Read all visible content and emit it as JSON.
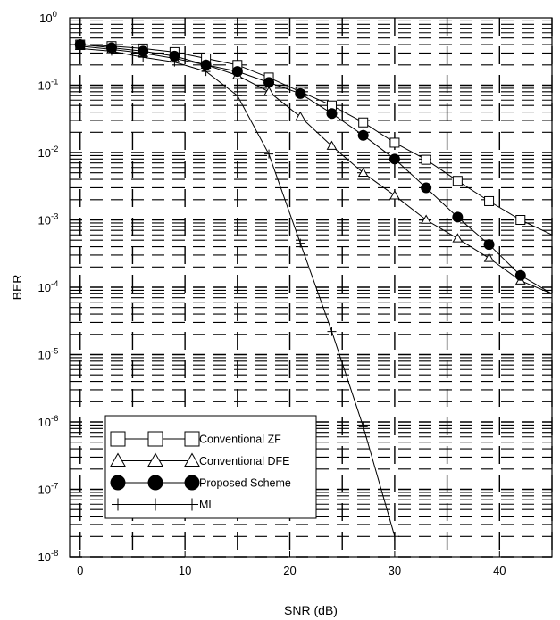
{
  "chart_data": {
    "type": "line",
    "title": "",
    "xlabel": "SNR (dB)",
    "ylabel": "BER",
    "yscale": "log",
    "xlim": [
      -1,
      45
    ],
    "ylim": [
      1e-08,
      1
    ],
    "xticks": [
      0,
      10,
      20,
      30,
      40
    ],
    "xtick_labels": [
      "0",
      "10",
      "20",
      "30",
      "40"
    ],
    "yticks": [
      {
        "value": 1,
        "base": "10",
        "exp": "0"
      },
      {
        "value": 0.1,
        "base": "10",
        "exp": "-1"
      },
      {
        "value": 0.01,
        "base": "10",
        "exp": "-2"
      },
      {
        "value": 0.001,
        "base": "10",
        "exp": "-3"
      },
      {
        "value": 0.0001,
        "base": "10",
        "exp": "-4"
      },
      {
        "value": 1e-05,
        "base": "10",
        "exp": "-5"
      },
      {
        "value": 1e-06,
        "base": "10",
        "exp": "-6"
      },
      {
        "value": 1e-07,
        "base": "10",
        "exp": "-7"
      },
      {
        "value": 1e-08,
        "base": "10",
        "exp": "-8"
      }
    ],
    "grid": true,
    "legend_position": "bottom-left",
    "series": [
      {
        "name": "Conventional ZF",
        "marker": "square",
        "x": [
          0,
          3,
          6,
          9,
          12,
          15,
          18,
          21,
          24,
          27,
          30,
          33,
          36,
          39,
          42,
          45
        ],
        "y": [
          0.4,
          0.38,
          0.35,
          0.31,
          0.25,
          0.2,
          0.13,
          0.08,
          0.05,
          0.028,
          0.014,
          0.0078,
          0.0038,
          0.0019,
          0.001,
          0.0006
        ]
      },
      {
        "name": "Conventional DFE",
        "marker": "triangle",
        "x": [
          0,
          3,
          6,
          9,
          12,
          15,
          18,
          21,
          24,
          27,
          30,
          33,
          36,
          39,
          42,
          45
        ],
        "y": [
          0.38,
          0.34,
          0.3,
          0.25,
          0.2,
          0.14,
          0.08,
          0.034,
          0.0125,
          0.005,
          0.0023,
          0.001,
          0.00053,
          0.00027,
          0.000125,
          8e-05
        ]
      },
      {
        "name": "Proposed Scheme",
        "marker": "circle",
        "x": [
          0,
          3,
          6,
          9,
          12,
          15,
          18,
          21,
          24,
          27,
          30,
          33,
          36,
          39,
          42,
          45
        ],
        "y": [
          0.4,
          0.36,
          0.32,
          0.27,
          0.2,
          0.16,
          0.11,
          0.075,
          0.038,
          0.018,
          0.008,
          0.003,
          0.0011,
          0.00043,
          0.00015,
          8e-05
        ]
      },
      {
        "name": "ML",
        "marker": "plus",
        "x": [
          0,
          3,
          6,
          9,
          12,
          15,
          18,
          21,
          24,
          27,
          30
        ],
        "y": [
          0.35,
          0.32,
          0.26,
          0.22,
          0.16,
          0.07,
          0.0095,
          0.00045,
          2.2e-05,
          8.5e-07,
          2e-08
        ]
      }
    ]
  }
}
